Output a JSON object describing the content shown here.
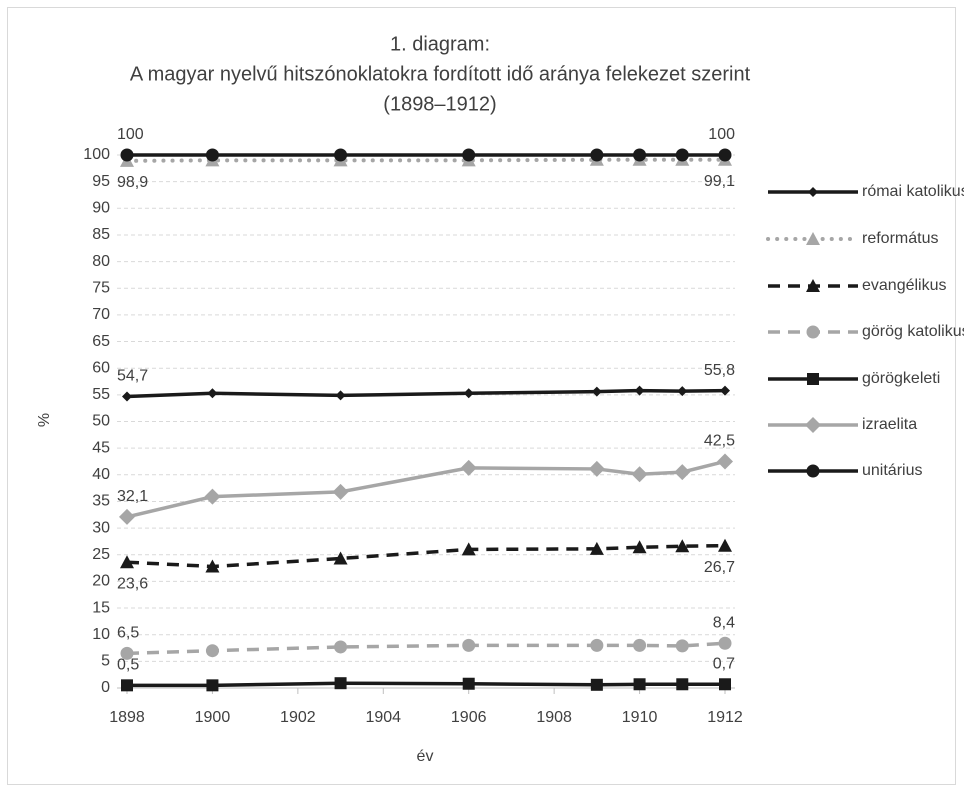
{
  "chart_data": {
    "type": "line",
    "title": [
      "1. diagram:",
      "A magyar nyelvű hitszónoklatokra fordított idő aránya felekezet szerint",
      "(1898–1912)"
    ],
    "x_label": "év",
    "y_label": "%",
    "x": [
      1898,
      1900,
      1903,
      1906,
      1909,
      1910,
      1911,
      1912
    ],
    "xlim": [
      1898,
      1912
    ],
    "xticks": [
      1898,
      1900,
      1902,
      1904,
      1906,
      1908,
      1910,
      1912
    ],
    "ylim": [
      0,
      100
    ],
    "yticks": [
      0,
      5,
      10,
      15,
      20,
      25,
      30,
      35,
      40,
      45,
      50,
      55,
      60,
      65,
      70,
      75,
      80,
      85,
      90,
      95,
      100
    ],
    "grid": true,
    "legend": "right",
    "series": [
      {
        "name": "római katolikus",
        "color": "#1a1a1a",
        "dash": "solid",
        "marker": "small-diamond",
        "values": [
          54.7,
          55.3,
          54.9,
          55.3,
          55.6,
          55.8,
          55.7,
          55.8
        ],
        "value_labels": [
          "54,7",
          null,
          null,
          null,
          null,
          null,
          null,
          "55,8"
        ]
      },
      {
        "name": "református",
        "color": "#a6a6a6",
        "dash": "dotted",
        "marker": "triangle",
        "values": [
          98.9,
          99,
          99,
          99,
          99.1,
          99.1,
          99.1,
          99.1
        ],
        "value_labels": [
          "98,9",
          null,
          null,
          null,
          null,
          null,
          null,
          "99,1"
        ]
      },
      {
        "name": "evangélikus",
        "color": "#1a1a1a",
        "dash": "dashed",
        "marker": "triangle",
        "values": [
          23.6,
          22.8,
          24.3,
          26.0,
          26.1,
          26.4,
          26.6,
          26.7
        ],
        "value_labels": [
          "23,6",
          null,
          null,
          null,
          null,
          null,
          null,
          "26,7"
        ]
      },
      {
        "name": "görög katolikus",
        "color": "#a6a6a6",
        "dash": "dashed",
        "marker": "circle",
        "values": [
          6.5,
          7.0,
          7.7,
          8.0,
          8.0,
          8.0,
          7.9,
          8.4
        ],
        "value_labels": [
          "6,5",
          null,
          null,
          null,
          null,
          null,
          null,
          "8,4"
        ]
      },
      {
        "name": "görögkeleti",
        "color": "#1a1a1a",
        "dash": "solid",
        "marker": "square",
        "values": [
          0.5,
          0.5,
          0.9,
          0.8,
          0.6,
          0.7,
          0.7,
          0.7
        ],
        "value_labels": [
          "0,5",
          null,
          null,
          null,
          null,
          null,
          null,
          "0,7"
        ]
      },
      {
        "name": "izraelita",
        "color": "#a6a6a6",
        "dash": "solid",
        "marker": "diamond",
        "values": [
          32.1,
          35.9,
          36.8,
          41.3,
          41.1,
          40.1,
          40.5,
          42.5
        ],
        "value_labels": [
          "32,1",
          null,
          null,
          null,
          null,
          null,
          null,
          "42,5"
        ]
      },
      {
        "name": "unitárius",
        "color": "#1a1a1a",
        "dash": "solid",
        "marker": "circle",
        "values": [
          100,
          100,
          100,
          100,
          100,
          100,
          100,
          100
        ],
        "value_labels": [
          100,
          null,
          null,
          null,
          null,
          null,
          null,
          100
        ]
      }
    ]
  }
}
